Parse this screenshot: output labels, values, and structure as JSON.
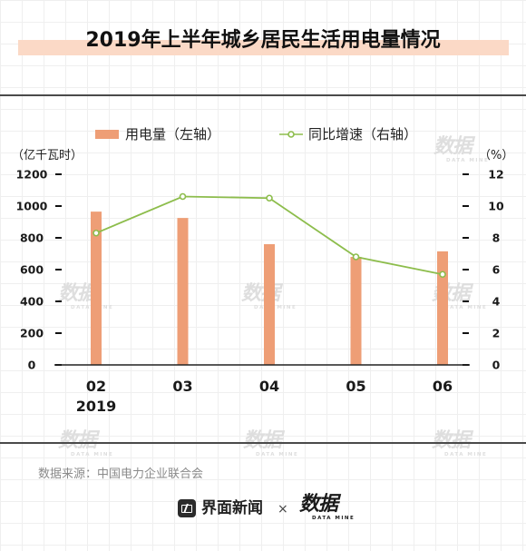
{
  "title": "2019年上半年城乡居民生活用电量情况",
  "chart_data": {
    "type": "bar",
    "categories": [
      "02",
      "03",
      "04",
      "05",
      "06"
    ],
    "year_label": "2019",
    "series": [
      {
        "name": "用电量（左轴）",
        "type": "bar",
        "axis": "left",
        "values": [
          965,
          925,
          760,
          680,
          715
        ]
      },
      {
        "name": "同比增速（右轴）",
        "type": "line",
        "axis": "right",
        "values": [
          8.3,
          10.6,
          10.5,
          6.8,
          5.7
        ]
      }
    ],
    "y_left": {
      "label": "（亿千瓦时）",
      "ylim": [
        0,
        1200
      ],
      "ticks": [
        0,
        200,
        400,
        600,
        800,
        1000,
        1200
      ]
    },
    "y_right": {
      "label": "（%）",
      "ylim": [
        0,
        12
      ],
      "ticks": [
        0,
        2,
        4,
        6,
        8,
        10,
        12
      ]
    },
    "grid": false,
    "legend_position": "top"
  },
  "source": "数据来源：中国电力企业联合会",
  "footer": {
    "brand_icon": "news-logo-icon",
    "brand": "界面新闻",
    "separator": "×",
    "partner": "数据",
    "partner_sub": "DATA MINE"
  },
  "watermark": {
    "text": "数据",
    "sub": "DATA MINE"
  },
  "colors": {
    "bar": "#ee9e76",
    "line": "#8dbd4c",
    "title_band": "#fbd9c6",
    "rule": "#4a4a4a",
    "source": "#8a8a8a"
  }
}
